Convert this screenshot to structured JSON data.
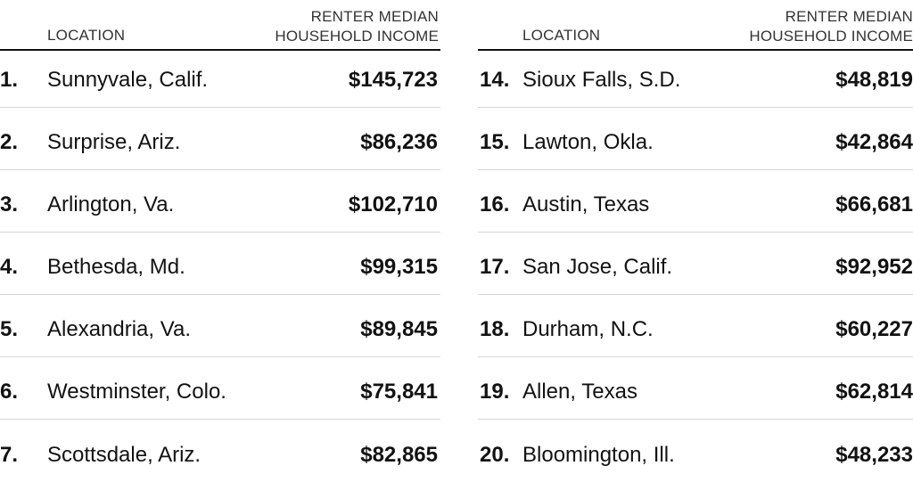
{
  "headers": {
    "location": "LOCATION",
    "income_line1": "RENTER MEDIAN",
    "income_line2": "HOUSEHOLD INCOME"
  },
  "left": [
    {
      "rank": "1.",
      "location": "Sunnyvale, Calif.",
      "income": "$145,723"
    },
    {
      "rank": "2.",
      "location": "Surprise, Ariz.",
      "income": "$86,236"
    },
    {
      "rank": "3.",
      "location": "Arlington, Va.",
      "income": "$102,710"
    },
    {
      "rank": "4.",
      "location": "Bethesda, Md.",
      "income": "$99,315"
    },
    {
      "rank": "5.",
      "location": "Alexandria, Va.",
      "income": "$89,845"
    },
    {
      "rank": "6.",
      "location": "Westminster, Colo.",
      "income": "$75,841"
    },
    {
      "rank": "7.",
      "location": "Scottsdale, Ariz.",
      "income": "$82,865"
    }
  ],
  "right": [
    {
      "rank": "14.",
      "location": "Sioux Falls, S.D.",
      "income": "$48,819"
    },
    {
      "rank": "15.",
      "location": "Lawton, Okla.",
      "income": "$42,864"
    },
    {
      "rank": "16.",
      "location": "Austin, Texas",
      "income": "$66,681"
    },
    {
      "rank": "17.",
      "location": "San Jose, Calif.",
      "income": "$92,952"
    },
    {
      "rank": "18.",
      "location": "Durham, N.C.",
      "income": "$60,227"
    },
    {
      "rank": "19.",
      "location": "Allen, Texas",
      "income": "$62,814"
    },
    {
      "rank": "20.",
      "location": "Bloomington, Ill.",
      "income": "$48,233"
    }
  ]
}
